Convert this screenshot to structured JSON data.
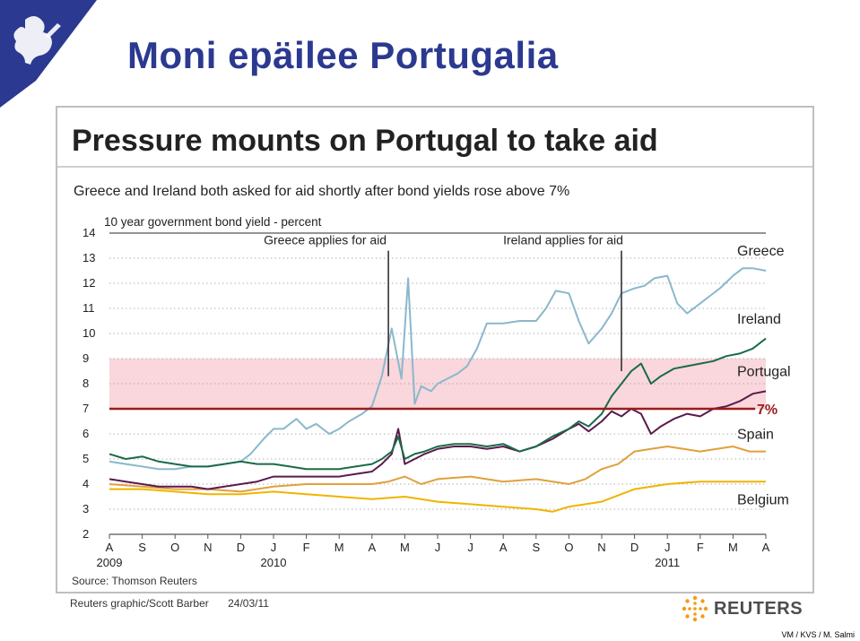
{
  "slide": {
    "title": "Moni epäilee Portugalia",
    "signature": "VM / KVS / M. Salmi"
  },
  "graphic": {
    "headline": "Pressure mounts on Portugal to take aid",
    "subheading": "Greece and Ireland both asked for aid shortly after bond yields rose above 7%",
    "source": "Source: Thomson Reuters",
    "credit": "Reuters graphic/Scott Barber",
    "date": "24/03/11",
    "brand": "REUTERS"
  },
  "colors": {
    "title": "#2b3990",
    "greece": "#8ab8cc",
    "ireland": "#1a6b47",
    "portugal": "#5b1a4e",
    "spain": "#e0a03c",
    "belgium": "#f0b400",
    "threshold": "#9b1b1b",
    "band": "#f9d7dc"
  },
  "chart_data": {
    "type": "line",
    "title": "Pressure mounts on Portugal to take aid",
    "subtitle": "Greece and Ireland both asked for aid shortly after bond yields rose above 7%",
    "ylabel": "10 year government bond yield - percent",
    "xlabel": "",
    "ylim": [
      2,
      14
    ],
    "yticks": [
      2,
      3,
      4,
      5,
      6,
      7,
      8,
      9,
      10,
      11,
      12,
      13,
      14
    ],
    "grid": true,
    "x_ticks": [
      "A",
      "S",
      "O",
      "N",
      "D",
      "J",
      "F",
      "M",
      "A",
      "M",
      "J",
      "J",
      "A",
      "S",
      "O",
      "N",
      "D",
      "J",
      "F",
      "M",
      "A"
    ],
    "year_labels": [
      {
        "label": "2009",
        "tick_index": 0
      },
      {
        "label": "2010",
        "tick_index": 5
      },
      {
        "label": "2011",
        "tick_index": 17
      }
    ],
    "threshold": {
      "value": 7,
      "label": "7%"
    },
    "shaded_band": [
      7,
      9
    ],
    "annotations": [
      {
        "label": "Greece applies for aid",
        "x": 8.5,
        "y_from": 8.3,
        "y_to": 13.3
      },
      {
        "label": "Ireland applies for aid",
        "x": 15.6,
        "y_from": 8.5,
        "y_to": 13.3
      }
    ],
    "series": [
      {
        "name": "Greece",
        "x": [
          0,
          0.5,
          1,
          1.5,
          2,
          2.5,
          3,
          3.5,
          4,
          4.3,
          4.7,
          5,
          5.3,
          5.7,
          6,
          6.3,
          6.7,
          7,
          7.3,
          7.7,
          8,
          8.3,
          8.6,
          8.9,
          9.1,
          9.3,
          9.5,
          9.8,
          10,
          10.3,
          10.6,
          10.9,
          11.2,
          11.5,
          12,
          12.5,
          13,
          13.3,
          13.6,
          14,
          14.3,
          14.6,
          15,
          15.3,
          15.6,
          16,
          16.3,
          16.6,
          17,
          17.3,
          17.6,
          18,
          18.3,
          18.6,
          19,
          19.3,
          19.6,
          20
        ],
        "values": [
          4.9,
          4.8,
          4.7,
          4.6,
          4.6,
          4.7,
          4.7,
          4.8,
          4.9,
          5.2,
          5.8,
          6.2,
          6.2,
          6.6,
          6.2,
          6.4,
          6.0,
          6.2,
          6.5,
          6.8,
          7.1,
          8.3,
          10.2,
          8.2,
          12.2,
          7.2,
          7.9,
          7.7,
          8.0,
          8.2,
          8.4,
          8.7,
          9.4,
          10.4,
          10.4,
          10.5,
          10.5,
          11.0,
          11.7,
          11.6,
          10.5,
          9.6,
          10.2,
          10.8,
          11.6,
          11.8,
          11.9,
          12.2,
          12.3,
          11.2,
          10.8,
          11.2,
          11.5,
          11.8,
          12.3,
          12.6,
          12.6,
          12.5
        ]
      },
      {
        "name": "Ireland",
        "x": [
          0,
          0.5,
          1,
          1.5,
          2,
          2.5,
          3,
          3.5,
          4,
          4.5,
          5,
          5.5,
          6,
          6.5,
          7,
          7.5,
          8,
          8.3,
          8.6,
          8.8,
          9,
          9.3,
          9.6,
          10,
          10.5,
          11,
          11.5,
          12,
          12.5,
          13,
          13.5,
          14,
          14.3,
          14.6,
          15,
          15.3,
          15.6,
          15.9,
          16.2,
          16.5,
          16.8,
          17.2,
          17.6,
          18,
          18.4,
          18.8,
          19.2,
          19.6,
          20
        ],
        "values": [
          5.2,
          5.0,
          5.1,
          4.9,
          4.8,
          4.7,
          4.7,
          4.8,
          4.9,
          4.8,
          4.8,
          4.7,
          4.6,
          4.6,
          4.6,
          4.7,
          4.8,
          5.0,
          5.3,
          5.9,
          5.0,
          5.2,
          5.3,
          5.5,
          5.6,
          5.6,
          5.5,
          5.6,
          5.3,
          5.5,
          5.9,
          6.2,
          6.5,
          6.3,
          6.8,
          7.5,
          8.0,
          8.5,
          8.8,
          8.0,
          8.3,
          8.6,
          8.7,
          8.8,
          8.9,
          9.1,
          9.2,
          9.4,
          9.8
        ]
      },
      {
        "name": "Portugal",
        "x": [
          0,
          0.5,
          1,
          1.5,
          2,
          2.5,
          3,
          3.5,
          4,
          4.5,
          5,
          5.5,
          6,
          6.5,
          7,
          7.5,
          8,
          8.3,
          8.6,
          8.8,
          9,
          9.3,
          9.6,
          10,
          10.5,
          11,
          11.5,
          12,
          12.5,
          13,
          13.5,
          14,
          14.3,
          14.6,
          15,
          15.3,
          15.6,
          15.9,
          16.2,
          16.5,
          16.8,
          17.2,
          17.6,
          18,
          18.4,
          18.8,
          19.2,
          19.6,
          20
        ],
        "values": [
          4.2,
          4.1,
          4.0,
          3.9,
          3.9,
          3.9,
          3.8,
          3.9,
          4.0,
          4.1,
          4.3,
          4.3,
          4.3,
          4.3,
          4.3,
          4.4,
          4.5,
          4.8,
          5.2,
          6.2,
          4.8,
          5.0,
          5.2,
          5.4,
          5.5,
          5.5,
          5.4,
          5.5,
          5.3,
          5.5,
          5.8,
          6.2,
          6.4,
          6.1,
          6.5,
          6.9,
          6.7,
          7.0,
          6.8,
          6.0,
          6.3,
          6.6,
          6.8,
          6.7,
          7.0,
          7.1,
          7.3,
          7.6,
          7.7
        ]
      },
      {
        "name": "Spain",
        "x": [
          0,
          1,
          2,
          3,
          4,
          5,
          6,
          7,
          8,
          8.5,
          9,
          9.5,
          10,
          11,
          12,
          13,
          14,
          14.5,
          15,
          15.5,
          16,
          16.5,
          17,
          17.5,
          18,
          18.5,
          19,
          19.5,
          20
        ],
        "values": [
          4.0,
          3.9,
          3.8,
          3.8,
          3.7,
          3.9,
          4.0,
          4.0,
          4.0,
          4.1,
          4.3,
          4.0,
          4.2,
          4.3,
          4.1,
          4.2,
          4.0,
          4.2,
          4.6,
          4.8,
          5.3,
          5.4,
          5.5,
          5.4,
          5.3,
          5.4,
          5.5,
          5.3,
          5.3
        ]
      },
      {
        "name": "Belgium",
        "x": [
          0,
          1,
          2,
          3,
          4,
          5,
          6,
          7,
          8,
          9,
          10,
          11,
          12,
          13,
          13.5,
          14,
          15,
          16,
          17,
          18,
          19,
          20
        ],
        "values": [
          3.8,
          3.8,
          3.7,
          3.6,
          3.6,
          3.7,
          3.6,
          3.5,
          3.4,
          3.5,
          3.3,
          3.2,
          3.1,
          3.0,
          2.9,
          3.1,
          3.3,
          3.8,
          4.0,
          4.1,
          4.1,
          4.1
        ]
      }
    ]
  }
}
